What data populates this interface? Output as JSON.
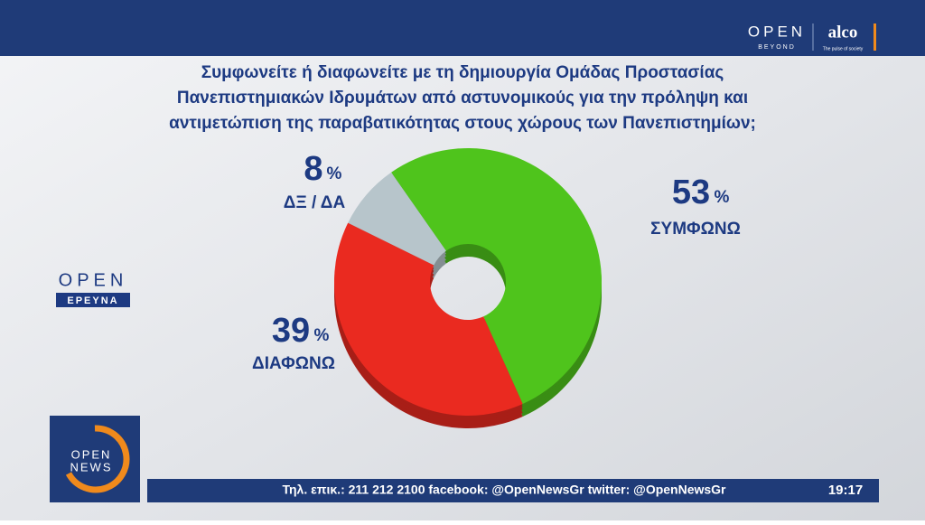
{
  "chart_data": {
    "type": "pie",
    "title": [
      "Συμφωνείτε ή διαφωνείτε με τη δημιουργία Ομάδας Προστασίας",
      "Πανεπιστημιακών Ιδρυμάτων από αστυνομικούς για την πρόληψη και",
      "αντιμετώπιση της παραβατικότητας στους χώρους των Πανεπιστημίων;"
    ],
    "categories": [
      "ΣΥΜΦΩΝΩ",
      "ΔΙΑΦΩΝΩ",
      "ΔΞ / ΔΑ"
    ],
    "values": [
      53,
      39,
      8
    ],
    "unit": "%",
    "colors": [
      "#4fc41c",
      "#ea2a20",
      "#b7c5cb"
    ]
  },
  "branding": {
    "channel": "OPEN",
    "channel_sub": "BEYOND",
    "pollster": "alco",
    "pollster_sub": "The pulse of society",
    "survey": "OPEN",
    "survey_sub": "ΕΡΕΥΝΑ",
    "news_1": "OPEN",
    "news_2": "NEWS"
  },
  "ticker": {
    "text": "Τηλ. επικ.: 211 212 2100 facebook: @OpenNewsGr twitter: @OpenNewsGr",
    "time": "19:17"
  }
}
